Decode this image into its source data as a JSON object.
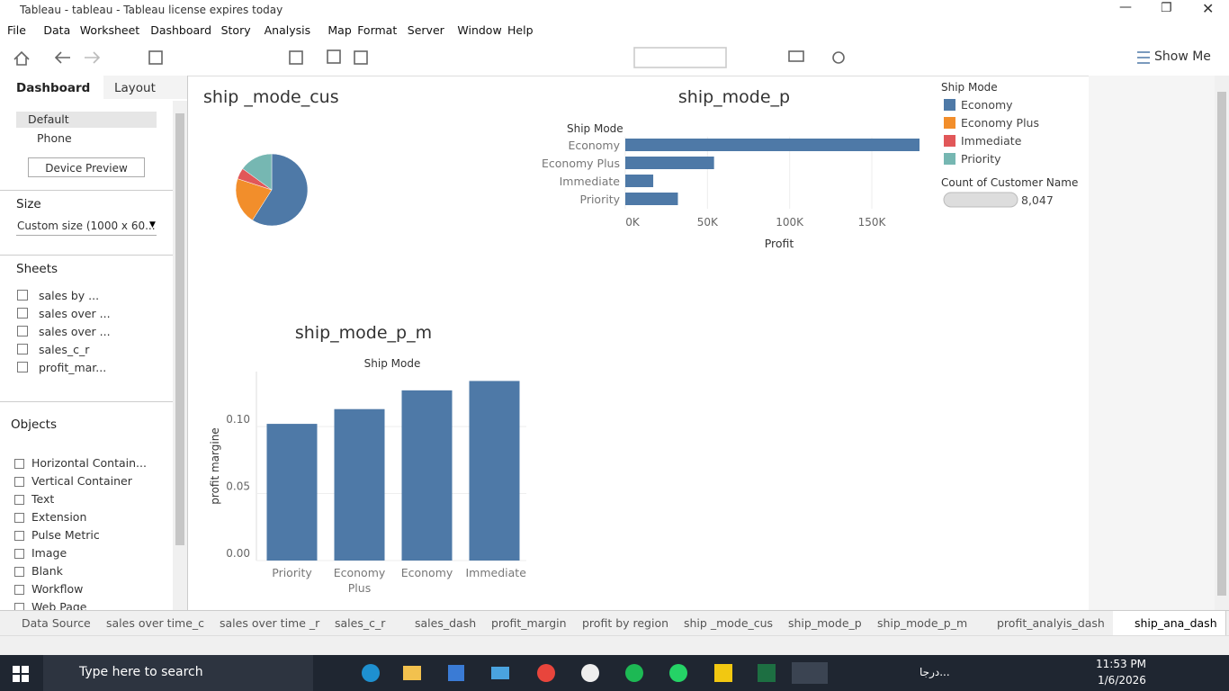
{
  "window": {
    "title": "Tableau - tableau - Tableau license expires today"
  },
  "menu": [
    "File",
    "Data",
    "Worksheet",
    "Dashboard",
    "Story",
    "Analysis",
    "Map",
    "Format",
    "Server",
    "Window",
    "Help"
  ],
  "toolbar": {
    "show_me": "Show Me"
  },
  "left_pane": {
    "tabs": [
      "Dashboard",
      "Layout"
    ],
    "devices": [
      "Default",
      "Phone"
    ],
    "device_preview": "Device Preview",
    "size_label": "Size",
    "size_value": "Custom size (1000 x 60...",
    "sheets_label": "Sheets",
    "sheets": [
      "sales by ...",
      "sales over ...",
      "sales over ...",
      "sales_c_r",
      "profit_mar..."
    ],
    "objects_label": "Objects",
    "objects": [
      "Horizontal Contain...",
      "Vertical Container",
      "Text",
      "Extension",
      "Pulse Metric",
      "Image",
      "Blank",
      "Workflow",
      "Web Page"
    ]
  },
  "chart_data": [
    {
      "type": "pie",
      "title": "ship _mode_cus",
      "categories": [
        "Economy",
        "Economy Plus",
        "Immediate",
        "Priority"
      ],
      "values": [
        59,
        21,
        5,
        15
      ],
      "colors": [
        "#4e79a7",
        "#f28e2b",
        "#e15759",
        "#76b7b2"
      ],
      "legend_title": "Ship Mode",
      "size_legend": {
        "title": "Count of Customer Name",
        "value": 8047,
        "label": "8,047"
      }
    },
    {
      "type": "hbar",
      "title": "ship_mode_p",
      "header": "Ship Mode",
      "categories": [
        "Economy",
        "Economy Plus",
        "Immediate",
        "Priority"
      ],
      "values": [
        179000,
        54000,
        17000,
        32000
      ],
      "color": "#4e79a7",
      "xlabel": "Profit",
      "xlim": [
        0,
        179000
      ],
      "xticks": [
        {
          "value": 0,
          "label": "0K"
        },
        {
          "value": 50000,
          "label": "50K"
        },
        {
          "value": 100000,
          "label": "100K"
        },
        {
          "value": 150000,
          "label": "150K"
        }
      ],
      "grid": true
    },
    {
      "type": "bar",
      "title": "ship_mode_p_m",
      "header": "Ship Mode",
      "categories": [
        "Priority",
        "Economy Plus",
        "Economy",
        "Immediate"
      ],
      "values": [
        0.102,
        0.113,
        0.127,
        0.134
      ],
      "color": "#4e79a7",
      "ylabel": "profit margine",
      "ylim": [
        0,
        0.141
      ],
      "yticks": [
        {
          "value": 0,
          "label": "0.00"
        },
        {
          "value": 0.05,
          "label": "0.05"
        },
        {
          "value": 0.1,
          "label": "0.10"
        }
      ],
      "grid": true
    }
  ],
  "bottom_tabs": [
    "Data Source",
    "sales over time_c",
    "sales over time _r",
    "sales_c_r",
    "sales_dash",
    "profit_margin",
    "profit by region",
    "ship _mode_cus",
    "ship_mode_p",
    "ship_mode_p_m",
    "profit_analyis_dash",
    "ship_ana_dash"
  ],
  "taskbar": {
    "search": "Type here to search",
    "weather": "درجا...",
    "time": "11:53 PM",
    "date": "1/6/2026"
  }
}
